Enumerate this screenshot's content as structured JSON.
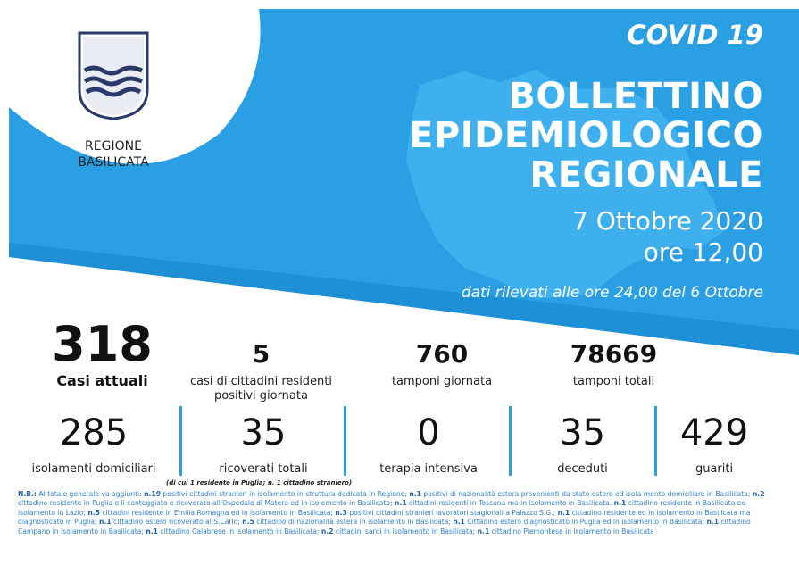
{
  "header": {
    "region_line1": "REGIONE",
    "region_line2": "BASILICATA",
    "covid_label": "COVID 19",
    "title_line1": "BOLLETTINO",
    "title_line2": "EPIDEMIOLOGICO",
    "title_line3": "REGIONALE",
    "date": "7 Ottobre 2020",
    "time": "ore 12,00",
    "rilevati": "dati rilevati alle ore 24,00 del 6 Ottobre"
  },
  "colors": {
    "banner_blue": "#2a9fe3",
    "banner_light": "#45b6f1",
    "text_blue": "#2d7fd3"
  },
  "row1": [
    {
      "value": "318",
      "label": "Casi attuali"
    },
    {
      "value": "5",
      "label_line1": "casi di cittadini residenti",
      "label_line2": "positivi giornata"
    },
    {
      "value": "760",
      "label": "tamponi giornata"
    },
    {
      "value": "78669",
      "label": "tamponi totali"
    }
  ],
  "row2": [
    {
      "value": "285",
      "label": "isolamenti domiciliari"
    },
    {
      "value": "35",
      "label": "ricoverati totali"
    },
    {
      "value": "0",
      "label": "terapia intensiva"
    },
    {
      "value": "35",
      "label": "deceduti"
    },
    {
      "value": "429",
      "label": "guariti"
    }
  ],
  "ricoverati_note": "(di cui 1 residente in Puglia; n. 1 cittadino straniero)",
  "notes": {
    "prefix": "N.B.:",
    "seg": [
      " Al totale generale va aggiunti: ",
      "n.19",
      " positivi cittadini stranieri in isolamento in struttura dedicata in Regione; ",
      "n.1",
      " positivi di nazionalità estera provenienti da stato estero ed isola mento domiciliare in Basilicata; ",
      "n.2",
      " cittadino residente in Puglia e li conteggiato e ricoverato all'Ospedale di Matera ed in isolemento in Basilicata; ",
      "n.1",
      " cittadini residenti in Toscana ma in isolamento in Basilicata. ",
      "n.1",
      " cittadino residente in Basilicata ed isolamento in Lazio; ",
      "n.5",
      " cittadini residente in Emilia Romagna ed in isolamento in Basilicata; ",
      "n.3",
      " positivi cittadini stranieri lavoratori stagionali a Palazzo S.G.; ",
      "n.1",
      " cittadino residente ed in isolamento in Basilicata ma diagnosticato in Puglia; ",
      "n.1",
      " cittadino estero ricoverato al S.Carlo; ",
      "n.5",
      " cittadino di nazionalità estera in isolamento in Basilicata; ",
      "n.1",
      " Cittadino estero diagnosticato in Puglia ed in isolamento in Basilicata; ",
      "n.1",
      " cittadino Campano in isolamento in Basilicata; ",
      "n.1",
      " cittadino Calabrese in isolamento in Basilicata; ",
      "n.2",
      " cittadini sardi in isolamento in Basilicata; ",
      "n.1",
      " cittadino Piemontese in isolamento in Basilicata"
    ]
  }
}
